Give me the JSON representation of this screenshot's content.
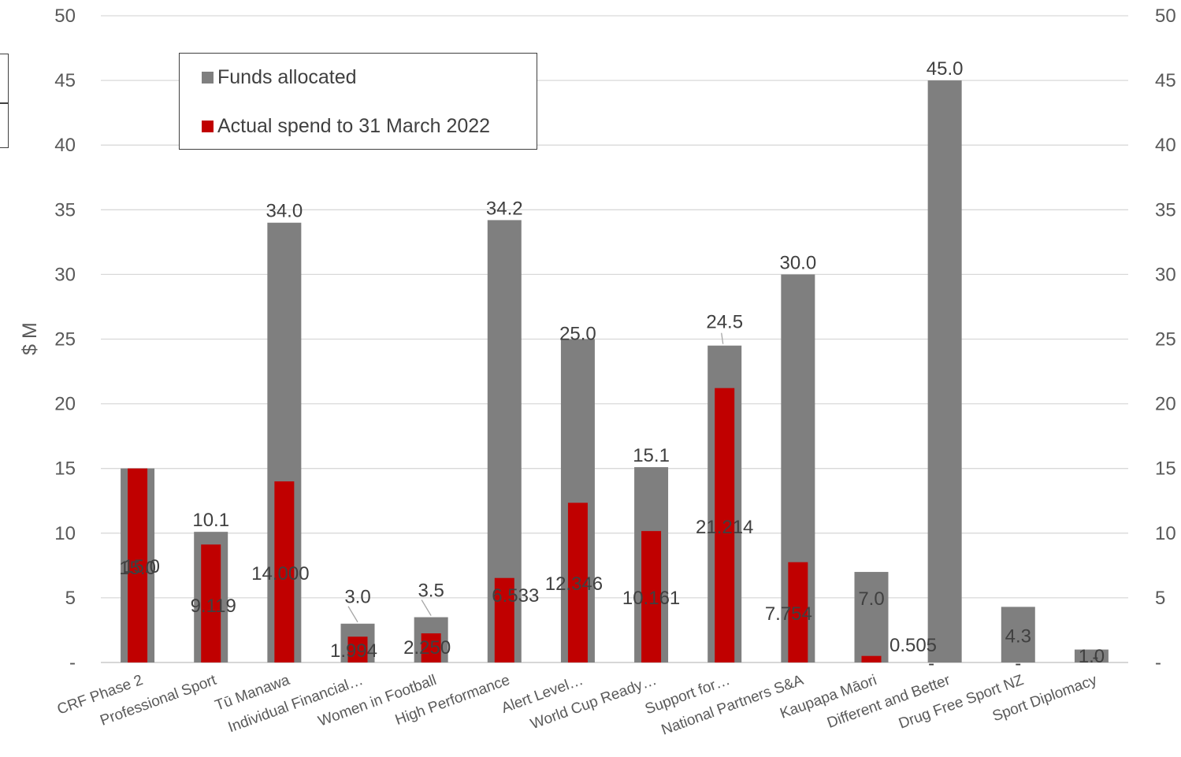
{
  "chart_data": {
    "type": "bar",
    "ylabel": "$ M",
    "ylim": [
      0,
      50
    ],
    "yticks": [
      "-",
      "5",
      "10",
      "15",
      "20",
      "25",
      "30",
      "35",
      "40",
      "45",
      "50"
    ],
    "secondary_yticks": [
      "-",
      "5",
      "10",
      "15",
      "20",
      "25",
      "30",
      "35",
      "40",
      "45",
      "50"
    ],
    "grid": true,
    "legend_position": "top-left",
    "categories": [
      "CRF Phase 2",
      "Professional Sport",
      "Tū Manawa",
      "Individual Financial…",
      "Women in Football",
      "High Performance",
      "Alert Level…",
      "World Cup Ready…",
      "Support for…",
      "National Partners S&A",
      "Kaupapa Māori",
      "Different and Better",
      "Drug Free Sport NZ",
      "Sport Diplomacy"
    ],
    "series": [
      {
        "name": "Funds allocated",
        "color": "#7f7f7f",
        "values": [
          15.0,
          10.1,
          34.0,
          3.0,
          3.5,
          34.2,
          25.0,
          15.1,
          24.5,
          30.0,
          7.0,
          45.0,
          4.3,
          1.0
        ],
        "labels": [
          "15.0",
          "10.1",
          "34.0",
          "3.0",
          "3.5",
          "34.2",
          "25.0",
          "15.1",
          "24.5",
          "30.0",
          "7.0",
          "45.0",
          "4.3",
          "1.0"
        ]
      },
      {
        "name": "Actual spend to 31 March 2022",
        "color": "#c00000",
        "values": [
          15.0,
          9.119,
          14.0,
          1.994,
          2.25,
          6.533,
          12.346,
          10.161,
          21.214,
          7.754,
          0.505,
          0,
          0,
          0
        ],
        "labels": [
          "15.0",
          "9.119",
          "14.000",
          "1.994",
          "2.250",
          "6.533",
          "12.346",
          "10.161",
          "21.214",
          "7.754",
          "0.505",
          "-",
          "-",
          "-"
        ]
      }
    ]
  }
}
